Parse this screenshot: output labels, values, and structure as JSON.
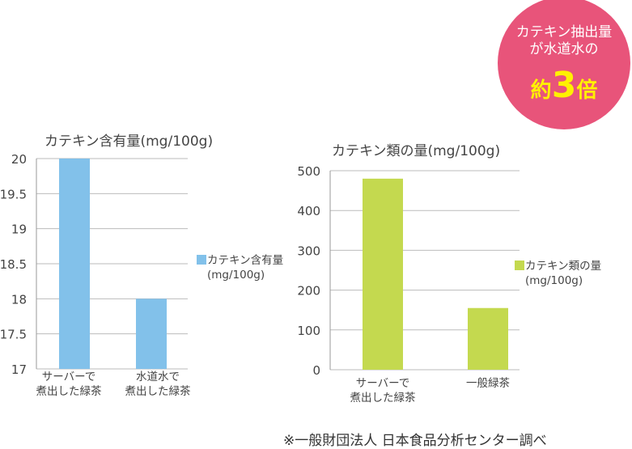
{
  "badge": {
    "line1": "カテキン抽出量",
    "line2": "が水道水の",
    "prefix": "約",
    "number": "3",
    "suffix": "倍",
    "color": "#e8547a",
    "highlight": "#fff100"
  },
  "source": "※一般財団法人 日本食品分析センター調べ",
  "chart_data": [
    {
      "type": "bar",
      "title": "カテキン含有量(mg/100g)",
      "categories": [
        [
          "サーバーで",
          "煮出した緑茶"
        ],
        [
          "水道水で",
          "煮出した緑茶"
        ]
      ],
      "values": [
        20,
        18
      ],
      "ylim": [
        17,
        20
      ],
      "yticks": [
        17,
        17.5,
        18,
        18.5,
        19,
        19.5,
        20
      ],
      "legend": [
        "カテキン含有量",
        "(mg/100g)"
      ],
      "legend_position": "right",
      "color": "#82c1ea",
      "grid": true
    },
    {
      "type": "bar",
      "title": "カテキン類の量(mg/100g)",
      "categories": [
        [
          "サーバーで",
          "煮出した緑茶"
        ],
        [
          "一般緑茶"
        ]
      ],
      "values": [
        480,
        155
      ],
      "ylim": [
        0,
        500
      ],
      "yticks": [
        0,
        100,
        200,
        300,
        400,
        500
      ],
      "legend": [
        "カテキン類の量",
        "(mg/100g)"
      ],
      "legend_position": "right",
      "color": "#c4d94f",
      "grid": true
    }
  ]
}
